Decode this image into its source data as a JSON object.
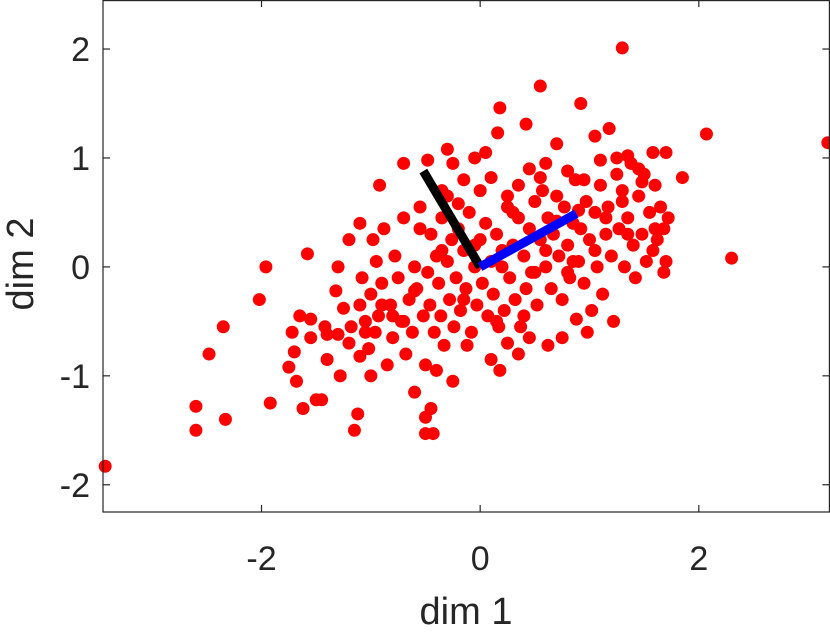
{
  "chart_data": {
    "type": "scatter",
    "xlabel": "dim 1",
    "ylabel": "dim 2",
    "xlim": [
      -3.45,
      3.2
    ],
    "ylim": [
      -2.25,
      2.45
    ],
    "xticks": [
      -2,
      0,
      2
    ],
    "xtick_labels": [
      "-2",
      "0",
      "2"
    ],
    "yticks": [
      -2,
      -1,
      0,
      1,
      2
    ],
    "ytick_labels": [
      "-2",
      "-1",
      "0",
      "1",
      "2"
    ],
    "grid": false,
    "box": true,
    "point_color": "#ff0000",
    "points": [
      [
        -3.43,
        -1.83
      ],
      [
        -2.6,
        -1.5
      ],
      [
        -2.6,
        -1.28
      ],
      [
        -2.33,
        -1.4
      ],
      [
        -2.48,
        -0.8
      ],
      [
        -2.35,
        -0.55
      ],
      [
        -2.02,
        -0.3
      ],
      [
        -1.96,
        0.0
      ],
      [
        -1.92,
        -1.25
      ],
      [
        -1.75,
        -0.92
      ],
      [
        -1.72,
        -0.6
      ],
      [
        -1.7,
        -0.78
      ],
      [
        -1.68,
        -1.05
      ],
      [
        -1.65,
        -0.45
      ],
      [
        -1.62,
        -1.3
      ],
      [
        -1.58,
        0.12
      ],
      [
        -1.55,
        -0.65
      ],
      [
        -1.5,
        -1.22
      ],
      [
        -1.45,
        -1.22
      ],
      [
        -1.42,
        -0.55
      ],
      [
        -1.4,
        -0.85
      ],
      [
        -1.32,
        -0.22
      ],
      [
        -1.3,
        -0.62
      ],
      [
        -1.28,
        -1.0
      ],
      [
        -1.25,
        -0.38
      ],
      [
        -1.2,
        -0.7
      ],
      [
        -1.18,
        -0.55
      ],
      [
        -1.15,
        -1.5
      ],
      [
        -1.12,
        -1.35
      ],
      [
        -1.1,
        -0.82
      ],
      [
        -1.1,
        -0.35
      ],
      [
        -1.08,
        -0.1
      ],
      [
        -1.05,
        -0.5
      ],
      [
        -1.02,
        -0.75
      ],
      [
        -1.0,
        -1.0
      ],
      [
        -1.0,
        -0.25
      ],
      [
        -0.98,
        0.25
      ],
      [
        -0.96,
        -0.6
      ],
      [
        -0.95,
        0.05
      ],
      [
        -0.93,
        -0.45
      ],
      [
        -0.9,
        -0.15
      ],
      [
        -0.88,
        0.35
      ],
      [
        -0.85,
        -0.9
      ],
      [
        -0.82,
        -0.35
      ],
      [
        -0.8,
        -0.65
      ],
      [
        -0.78,
        0.1
      ],
      [
        -0.75,
        -0.1
      ],
      [
        -0.72,
        -0.5
      ],
      [
        -0.7,
        0.45
      ],
      [
        -0.68,
        -0.8
      ],
      [
        -0.65,
        -0.3
      ],
      [
        -0.62,
        -0.6
      ],
      [
        -0.6,
        0.0
      ],
      [
        -0.58,
        -0.2
      ],
      [
        -0.55,
        0.55
      ],
      [
        -0.52,
        -0.45
      ],
      [
        -0.5,
        -0.9
      ],
      [
        -0.48,
        -0.05
      ],
      [
        -0.46,
        -0.35
      ],
      [
        -0.45,
        0.3
      ],
      [
        -0.42,
        -0.6
      ],
      [
        -0.4,
        0.1
      ],
      [
        -0.38,
        -0.15
      ],
      [
        -0.36,
        -0.45
      ],
      [
        -0.35,
        0.45
      ],
      [
        -0.33,
        -0.72
      ],
      [
        -0.3,
        0.05
      ],
      [
        -0.28,
        -0.3
      ],
      [
        -0.26,
        0.25
      ],
      [
        -0.24,
        -0.55
      ],
      [
        -0.22,
        -0.1
      ],
      [
        -0.2,
        0.35
      ],
      [
        -0.18,
        -0.4
      ],
      [
        -0.15,
        0.15
      ],
      [
        -0.13,
        -0.2
      ],
      [
        -0.1,
        0.5
      ],
      [
        -0.08,
        -0.6
      ],
      [
        -0.05,
        0.0
      ],
      [
        -0.03,
        -0.35
      ],
      [
        0.0,
        0.25
      ],
      [
        0.02,
        -0.15
      ],
      [
        0.05,
        0.4
      ],
      [
        0.07,
        -0.45
      ],
      [
        0.1,
        0.05
      ],
      [
        0.12,
        -0.25
      ],
      [
        0.15,
        0.3
      ],
      [
        0.17,
        -0.55
      ],
      [
        0.2,
        0.0
      ],
      [
        0.22,
        -0.4
      ],
      [
        0.25,
        0.55
      ],
      [
        0.27,
        -0.1
      ],
      [
        0.3,
        0.2
      ],
      [
        0.32,
        -0.3
      ],
      [
        0.35,
        0.45
      ],
      [
        0.37,
        -0.55
      ],
      [
        0.4,
        0.1
      ],
      [
        0.42,
        -0.2
      ],
      [
        0.45,
        0.35
      ],
      [
        0.47,
        -0.05
      ],
      [
        0.5,
        0.6
      ],
      [
        0.52,
        -0.35
      ],
      [
        0.55,
        0.25
      ],
      [
        0.57,
        0.7
      ],
      [
        0.6,
        0.0
      ],
      [
        0.62,
        0.45
      ],
      [
        0.65,
        -0.2
      ],
      [
        0.67,
        0.3
      ],
      [
        0.7,
        0.65
      ],
      [
        0.72,
        0.1
      ],
      [
        0.75,
        -0.3
      ],
      [
        0.77,
        0.55
      ],
      [
        0.8,
        0.2
      ],
      [
        0.82,
        -0.1
      ],
      [
        0.85,
        0.4
      ],
      [
        0.87,
        0.8
      ],
      [
        0.9,
        0.05
      ],
      [
        0.92,
        0.35
      ],
      [
        0.95,
        -0.15
      ],
      [
        0.97,
        0.6
      ],
      [
        1.0,
        0.25
      ],
      [
        1.02,
        -0.4
      ],
      [
        1.05,
        0.5
      ],
      [
        1.07,
        0.0
      ],
      [
        1.1,
        0.75
      ],
      [
        1.12,
        -0.25
      ],
      [
        1.15,
        0.3
      ],
      [
        1.17,
        0.55
      ],
      [
        1.2,
        0.1
      ],
      [
        1.22,
        -0.5
      ],
      [
        1.25,
        0.85
      ],
      [
        1.27,
        0.35
      ],
      [
        1.3,
        0.6
      ],
      [
        1.32,
        0.0
      ],
      [
        1.35,
        0.45
      ],
      [
        1.38,
        0.95
      ],
      [
        1.4,
        0.2
      ],
      [
        1.42,
        -0.1
      ],
      [
        1.45,
        0.65
      ],
      [
        1.48,
        0.3
      ],
      [
        1.5,
        0.85
      ],
      [
        1.52,
        0.05
      ],
      [
        1.55,
        0.5
      ],
      [
        1.58,
        0.15
      ],
      [
        1.6,
        0.75
      ],
      [
        1.62,
        0.25
      ],
      [
        1.65,
        0.55
      ],
      [
        1.68,
        0.35
      ],
      [
        1.7,
        0.05
      ],
      [
        1.72,
        0.45
      ],
      [
        1.85,
        0.82
      ],
      [
        2.07,
        1.22
      ],
      [
        2.3,
        0.08
      ],
      [
        3.18,
        1.14
      ],
      [
        1.3,
        2.01
      ],
      [
        1.68,
        -0.05
      ],
      [
        0.55,
        1.66
      ],
      [
        0.92,
        1.5
      ],
      [
        1.18,
        1.27
      ],
      [
        0.42,
        1.31
      ],
      [
        0.18,
        1.46
      ],
      [
        0.16,
        1.23
      ],
      [
        1.05,
        1.2
      ],
      [
        0.7,
        1.13
      ],
      [
        0.6,
        0.95
      ],
      [
        0.45,
        0.9
      ],
      [
        1.35,
        1.02
      ],
      [
        1.45,
        0.9
      ],
      [
        1.58,
        1.05
      ],
      [
        1.7,
        1.05
      ],
      [
        1.48,
        0.78
      ],
      [
        1.25,
        1.0
      ],
      [
        -0.05,
        1.0
      ],
      [
        -0.25,
        0.95
      ],
      [
        0.05,
        1.05
      ],
      [
        -0.3,
        1.08
      ],
      [
        -0.48,
        0.98
      ],
      [
        -0.15,
        0.8
      ],
      [
        0.1,
        0.82
      ],
      [
        -0.35,
        0.7
      ],
      [
        1.1,
        0.98
      ],
      [
        0.8,
        0.88
      ],
      [
        0.35,
        0.75
      ],
      [
        0.25,
        0.65
      ],
      [
        0.0,
        0.7
      ],
      [
        -0.2,
        0.58
      ],
      [
        0.55,
        0.82
      ],
      [
        1.3,
        0.7
      ],
      [
        0.95,
        0.8
      ],
      [
        -0.92,
        0.75
      ],
      [
        -0.3,
        0.65
      ],
      [
        -1.1,
        0.4
      ],
      [
        -1.3,
        0.0
      ],
      [
        -1.2,
        0.25
      ],
      [
        -0.6,
        -1.15
      ],
      [
        -0.45,
        -1.3
      ],
      [
        -0.5,
        -1.38
      ],
      [
        -0.5,
        -1.53
      ],
      [
        -0.43,
        -1.53
      ],
      [
        -0.25,
        -1.05
      ],
      [
        -0.4,
        -0.95
      ],
      [
        0.18,
        -0.95
      ],
      [
        0.35,
        -0.8
      ],
      [
        0.45,
        -0.65
      ],
      [
        0.62,
        -0.72
      ],
      [
        0.75,
        -0.65
      ],
      [
        0.88,
        -0.48
      ],
      [
        0.98,
        -0.6
      ],
      [
        0.25,
        -0.7
      ],
      [
        0.1,
        -0.85
      ],
      [
        -0.12,
        -0.72
      ],
      [
        -0.6,
        -0.22
      ],
      [
        -0.8,
        -0.45
      ],
      [
        -1.4,
        -0.62
      ],
      [
        -1.55,
        -0.48
      ],
      [
        -0.7,
        0.95
      ],
      [
        1.15,
        0.45
      ],
      [
        1.6,
        0.35
      ],
      [
        0.3,
        0.5
      ],
      [
        0.7,
        0.42
      ],
      [
        0.9,
        0.52
      ],
      [
        -0.15,
        -0.3
      ],
      [
        0.4,
        -0.45
      ],
      [
        0.6,
        0.15
      ],
      [
        0.8,
        -0.05
      ],
      [
        1.05,
        0.15
      ],
      [
        1.35,
        0.3
      ],
      [
        0.2,
        0.15
      ],
      [
        -0.05,
        0.2
      ],
      [
        0.15,
        -0.5
      ],
      [
        -0.7,
        -0.5
      ],
      [
        -0.9,
        -0.35
      ],
      [
        -1.05,
        -0.6
      ],
      [
        -0.35,
        0.15
      ],
      [
        -0.55,
        0.35
      ],
      [
        0.5,
        -0.05
      ],
      [
        0.85,
        0.05
      ]
    ],
    "vectors": [
      {
        "color": "#000000",
        "from": [
          0,
          0
        ],
        "to": [
          -0.52,
          0.88
        ]
      },
      {
        "color": "#0000ff",
        "from": [
          0,
          0
        ],
        "to": [
          0.88,
          0.49
        ]
      }
    ]
  }
}
